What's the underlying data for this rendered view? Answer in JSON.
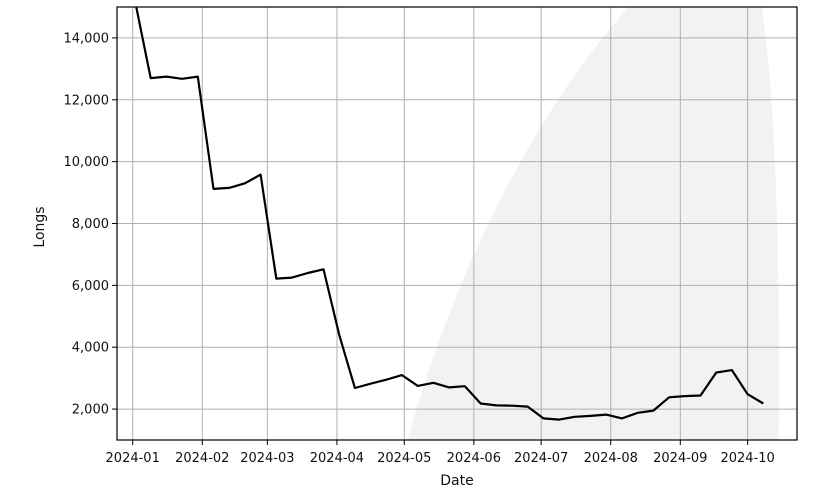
{
  "chart_data": {
    "type": "line",
    "xlabel": "Date",
    "ylabel": "Longs",
    "x_ticks": [
      "2024-01",
      "2024-02",
      "2024-03",
      "2024-04",
      "2024-05",
      "2024-06",
      "2024-07",
      "2024-08",
      "2024-09",
      "2024-10"
    ],
    "y_ticks": [
      "2,000",
      "4,000",
      "6,000",
      "8,000",
      "10,000",
      "12,000",
      "14,000"
    ],
    "ylim": [
      1000,
      15000
    ],
    "xlim": [
      "2023-12-25",
      "2024-10-23"
    ],
    "grid": true,
    "colors": {
      "line": "#000000",
      "grid": "#b0b0b0",
      "background_wedge": "#f2f2f2"
    },
    "series": [
      {
        "x": [
          "2024-01-02",
          "2024-01-09",
          "2024-01-16",
          "2024-01-23",
          "2024-01-30",
          "2024-02-06",
          "2024-02-13",
          "2024-02-20",
          "2024-02-27",
          "2024-03-05",
          "2024-03-12",
          "2024-03-19",
          "2024-03-26",
          "2024-04-02",
          "2024-04-09",
          "2024-04-16",
          "2024-04-23",
          "2024-04-30",
          "2024-05-07",
          "2024-05-14",
          "2024-05-21",
          "2024-05-28",
          "2024-06-04",
          "2024-06-11",
          "2024-06-18",
          "2024-06-25",
          "2024-07-02",
          "2024-07-09",
          "2024-07-16",
          "2024-07-23",
          "2024-07-30",
          "2024-08-06",
          "2024-08-13",
          "2024-08-20",
          "2024-08-27",
          "2024-09-03",
          "2024-09-10",
          "2024-09-17",
          "2024-09-24",
          "2024-10-01",
          "2024-10-08"
        ],
        "y": [
          15200,
          12700,
          12750,
          12680,
          12750,
          9120,
          9150,
          9300,
          9580,
          6220,
          6250,
          6400,
          6520,
          4400,
          2680,
          2820,
          2950,
          3100,
          2750,
          2850,
          2700,
          2740,
          2180,
          2120,
          2110,
          2080,
          1700,
          1660,
          1750,
          1780,
          1820,
          1700,
          1880,
          1950,
          2380,
          2420,
          2440,
          3180,
          3260,
          2480,
          2180
        ]
      }
    ]
  }
}
